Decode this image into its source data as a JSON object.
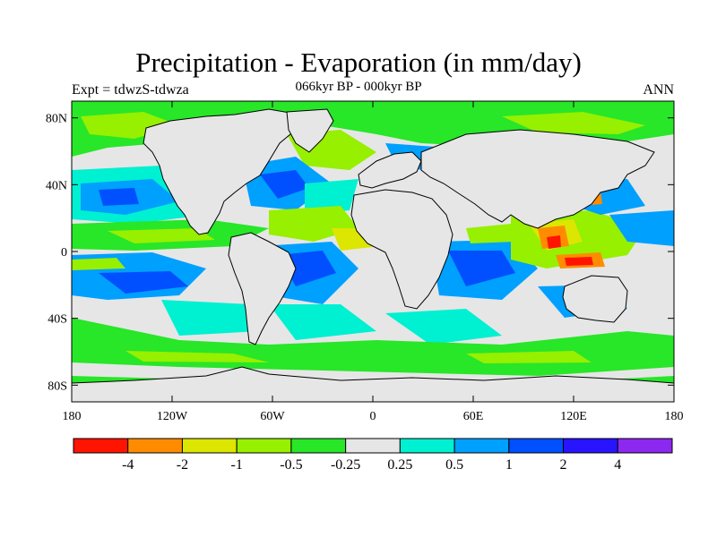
{
  "title": "Precipitation - Evaporation (in mm/day)",
  "subtitle": "066kyr BP - 000kyr BP",
  "left_label": "Expt = tdwzS-tdwza",
  "right_label": "ANN",
  "map": {
    "projection": "cylindrical-equidistant",
    "lon_range": [
      -180,
      180
    ],
    "lat_range": [
      -90,
      90
    ],
    "background_color": "#e6e6e6",
    "coastline_color": "#000000",
    "x_ticks": [
      {
        "lon": -180,
        "label": "180"
      },
      {
        "lon": -120,
        "label": "120W"
      },
      {
        "lon": -60,
        "label": "60W"
      },
      {
        "lon": 0,
        "label": "0"
      },
      {
        "lon": 60,
        "label": "60E"
      },
      {
        "lon": 120,
        "label": "120E"
      },
      {
        "lon": 180,
        "label": "180"
      }
    ],
    "y_ticks": [
      {
        "lat": 80,
        "label": "80N"
      },
      {
        "lat": 40,
        "label": "40N"
      },
      {
        "lat": 0,
        "label": "0"
      },
      {
        "lat": -40,
        "label": "40S"
      },
      {
        "lat": -80,
        "label": "80S"
      }
    ]
  },
  "colorbar": {
    "colors": [
      "#ff1400",
      "#ff8c00",
      "#dce600",
      "#96f000",
      "#28e628",
      "#e6e6e6",
      "#00f0d2",
      "#00a0ff",
      "#0050ff",
      "#2814ff",
      "#8c28f0"
    ],
    "labels": [
      "-4",
      "-2",
      "-1",
      "-0.5",
      "-0.25",
      "0.25",
      "0.5",
      "1",
      "2",
      "4"
    ]
  }
}
